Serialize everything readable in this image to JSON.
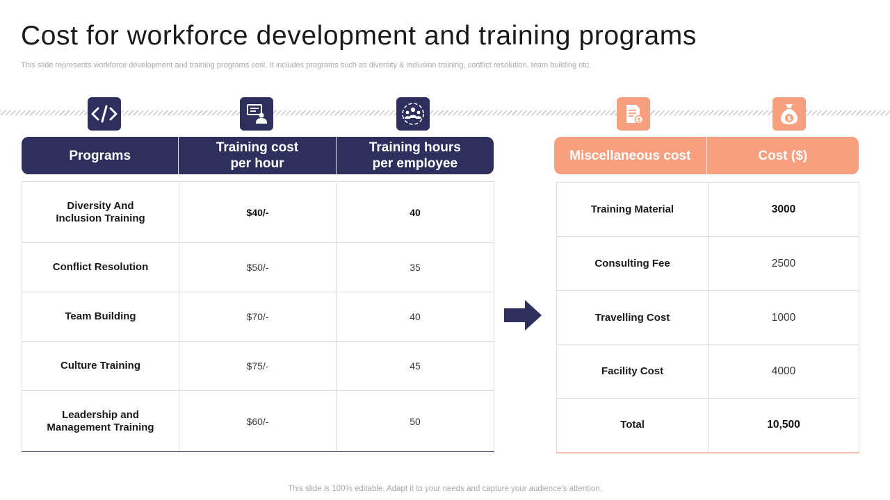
{
  "title": "Cost for workforce development and training programs",
  "subtitle": "This slide represents workforce development and training programs cost. It includes programs such as diversity & inclusion training, conflict resolution, team building etc.",
  "icons": [
    "code-icon",
    "presentation-icon",
    "team-icon",
    "invoice-icon",
    "money-bag-icon"
  ],
  "colors": {
    "navy": "#2e2f5c",
    "salmon": "#f79f7f"
  },
  "programs_table": {
    "headers": [
      "Programs",
      "Training cost\nper hour",
      "Training hours\nper employee"
    ],
    "rows": [
      [
        "Diversity And\nInclusion Training",
        "$40/-",
        "40"
      ],
      [
        "Conflict Resolution",
        "$50/-",
        "35"
      ],
      [
        "Team Building",
        "$70/-",
        "40"
      ],
      [
        "Culture Training",
        "$75/-",
        "45"
      ],
      [
        "Leadership and\nManagement Training",
        "$60/-",
        "50"
      ]
    ]
  },
  "misc_table": {
    "headers": [
      "Miscellaneous cost",
      "Cost ($)"
    ],
    "rows": [
      [
        "Training Material",
        "3000"
      ],
      [
        "Consulting Fee",
        "2500"
      ],
      [
        "Travelling Cost",
        "1000"
      ],
      [
        "Facility Cost",
        "4000"
      ],
      [
        "Total",
        "10,500"
      ]
    ]
  },
  "footer": "This slide is 100% editable. Adapt it to your needs and capture your audience’s attention."
}
